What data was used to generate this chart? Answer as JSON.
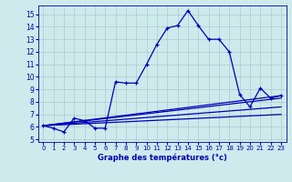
{
  "title": "Graphe des températures (°c)",
  "background_color": "#ceeaec",
  "grid_color": "#aacccc",
  "line_color": "#0000bb",
  "xlim": [
    -0.5,
    23.5
  ],
  "ylim": [
    4.8,
    15.7
  ],
  "yticks": [
    5,
    6,
    7,
    8,
    9,
    10,
    11,
    12,
    13,
    14,
    15
  ],
  "xticks": [
    0,
    1,
    2,
    3,
    4,
    5,
    6,
    7,
    8,
    9,
    10,
    11,
    12,
    13,
    14,
    15,
    16,
    17,
    18,
    19,
    20,
    21,
    22,
    23
  ],
  "main_line_x": [
    0,
    1,
    2,
    3,
    4,
    5,
    6,
    7,
    8,
    9,
    10,
    11,
    12,
    13,
    14,
    15,
    16,
    17,
    18,
    19,
    20,
    21,
    22,
    23
  ],
  "main_line_y": [
    6.1,
    5.9,
    5.6,
    6.7,
    6.5,
    5.9,
    5.9,
    9.6,
    9.5,
    9.5,
    11.0,
    12.6,
    13.9,
    14.1,
    15.3,
    14.1,
    13.0,
    13.0,
    12.0,
    8.6,
    7.6,
    9.1,
    8.3,
    8.5
  ],
  "ref_lines": [
    {
      "x": [
        0,
        23
      ],
      "y": [
        6.1,
        8.5
      ]
    },
    {
      "x": [
        0,
        23
      ],
      "y": [
        6.1,
        8.3
      ]
    },
    {
      "x": [
        0,
        23
      ],
      "y": [
        6.1,
        7.6
      ]
    },
    {
      "x": [
        0,
        23
      ],
      "y": [
        6.1,
        7.0
      ]
    }
  ],
  "xlabel_fontsize": 6.0,
  "tick_fontsize": 5.0,
  "linewidth": 0.9,
  "marker_size": 3.0
}
